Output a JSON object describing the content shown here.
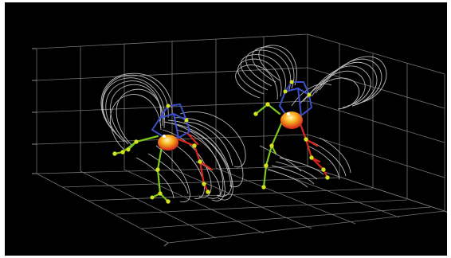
{
  "scene": {
    "background": "#000000",
    "grid_color": "#8a8a8a",
    "trail_color": "#d8d8d8",
    "skeleton_colors": {
      "left_limb": "#7cc81e",
      "right_limb": "#d8281e",
      "head": "#3c4ec8",
      "joint": "#d6e21e",
      "body": "#f0a020"
    },
    "figures": [
      {
        "label": "figure-left"
      },
      {
        "label": "figure-right"
      }
    ]
  }
}
